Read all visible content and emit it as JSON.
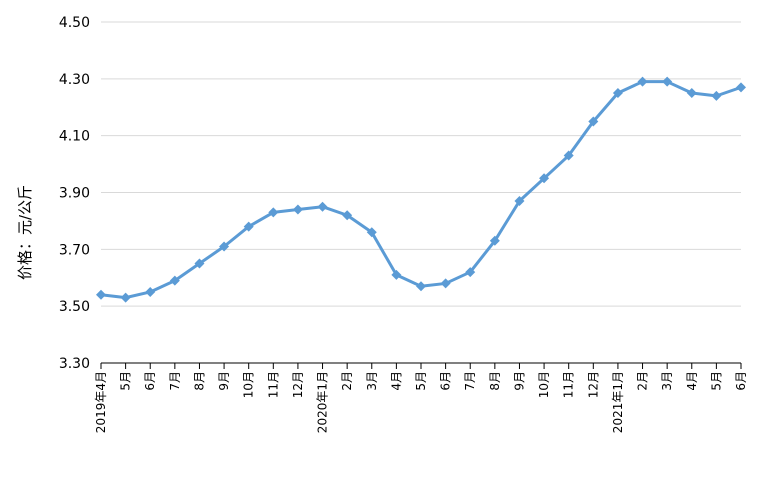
{
  "chart_data": {
    "type": "line",
    "title": "",
    "xlabel": "",
    "ylabel": "价格：元/公斤",
    "ylim": [
      3.3,
      4.5
    ],
    "y_ticks": [
      "3.30",
      "3.50",
      "3.70",
      "3.90",
      "4.10",
      "4.30",
      "4.50"
    ],
    "grid": true,
    "legend": "none",
    "colors": {
      "line": "#5b9bd5",
      "grid": "#d9d9d9",
      "axis": "#000000"
    },
    "categories": [
      "2019年4月",
      "5月",
      "6月",
      "7月",
      "8月",
      "9月",
      "10月",
      "11月",
      "12月",
      "2020年1月",
      "2月",
      "3月",
      "4月",
      "5月",
      "6月",
      "7月",
      "8月",
      "9月",
      "10月",
      "11月",
      "12月",
      "2021年1月",
      "2月",
      "3月",
      "4月",
      "5月",
      "6月"
    ],
    "series": [
      {
        "name": "",
        "values": [
          3.54,
          3.53,
          3.55,
          3.59,
          3.65,
          3.71,
          3.78,
          3.83,
          3.84,
          3.85,
          3.82,
          3.76,
          3.61,
          3.57,
          3.58,
          3.62,
          3.73,
          3.87,
          3.95,
          4.03,
          4.15,
          4.25,
          4.29,
          4.29,
          4.25,
          4.24,
          4.27
        ]
      }
    ]
  }
}
